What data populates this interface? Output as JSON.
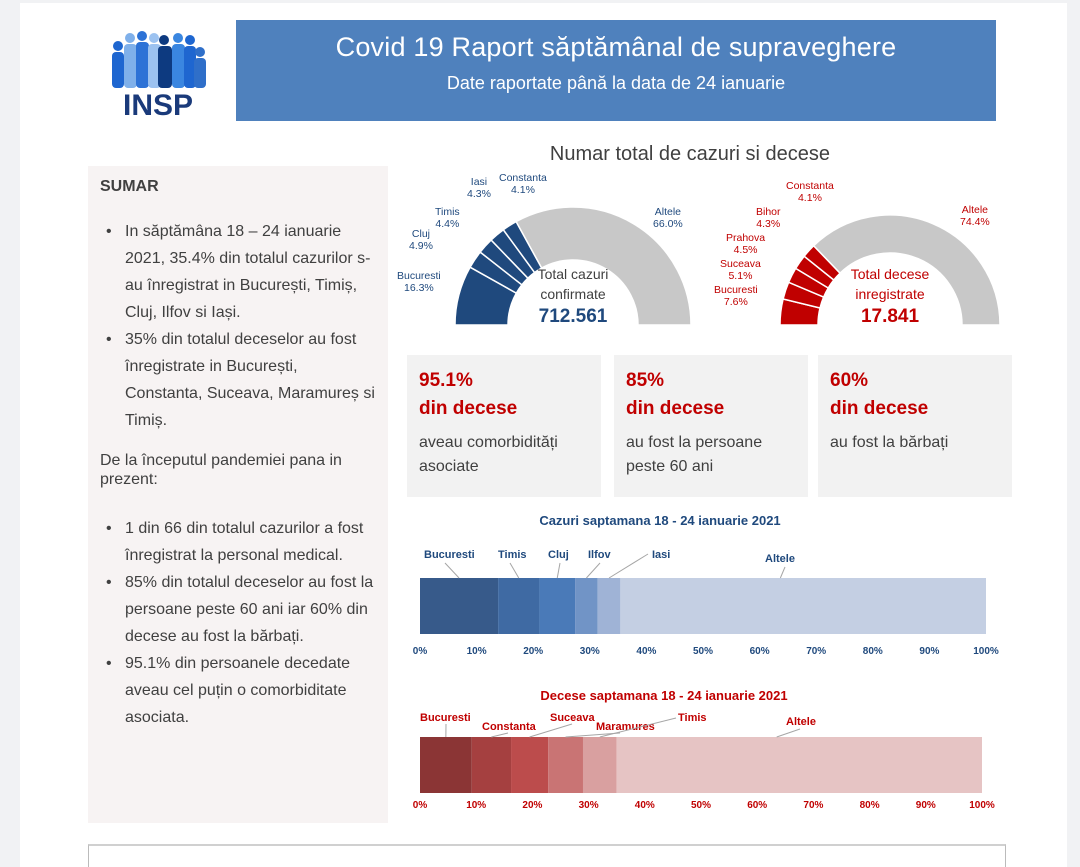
{
  "header": {
    "logo_text": "INSP",
    "title": "Covid 19 Raport săptămânal de supraveghere",
    "subtitle": "Date raportate până la data de 24 ianuarie"
  },
  "sumar": {
    "heading": "SUMAR",
    "week_bullets": [
      "In săptămâna 18  – 24 ianuarie 2021, 35.4% din totalul cazurilor s-au înregistrat in București, Timiș, Cluj, Ilfov si Iași.",
      "35% din totalul deceselor au fost înregistrate in București, Constanta, Suceava, Maramureș si Timiș."
    ],
    "since_start_heading": "De la începutul pandemiei pana in prezent:",
    "since_start_bullets": [
      "1 din 66 din totalul cazurilor a fost înregistrat la personal medical.",
      "85% din totalul deceselor au fost la persoane peste 60 ani iar 60% din decese au fost la bărbați.",
      "95.1% din persoanele decedate aveau cel puțin o comorbiditate asociata."
    ]
  },
  "section_title": "Numar total de cazuri si decese",
  "kpis": [
    {
      "value": "95.1%",
      "label": "din decese",
      "desc": "aveau comorbidități asociate"
    },
    {
      "value": "85%",
      "label": "din decese",
      "desc": "au fost la persoane peste 60 ani"
    },
    {
      "value": "60%",
      "label": "din decese",
      "desc": "au fost la bărbați"
    }
  ],
  "colors": {
    "banner": "#4f81bd",
    "cases_dark": "#1f497d",
    "deaths_red": "#c00000",
    "gauge_grey": "#c8c8c8",
    "kpi_red": "#c00000"
  },
  "chart_data": [
    {
      "type": "pie",
      "variant": "half-donut",
      "title": "Total cazuri confirmate",
      "center_line1": "Total cazuri",
      "center_line2": "confirmate",
      "total": "712.561",
      "series": [
        {
          "name": "Bucuresti",
          "value": 16.3,
          "label": "16.3%"
        },
        {
          "name": "Cluj",
          "value": 4.9,
          "label": "4.9%"
        },
        {
          "name": "Timis",
          "value": 4.4,
          "label": "4.4%"
        },
        {
          "name": "Iasi",
          "value": 4.3,
          "label": "4.3%"
        },
        {
          "name": "Constanta",
          "value": 4.1,
          "label": "4.1%"
        },
        {
          "name": "Altele",
          "value": 66.0,
          "label": "66.0%"
        }
      ]
    },
    {
      "type": "pie",
      "variant": "half-donut",
      "title": "Total decese inregistrate",
      "center_line1": "Total decese",
      "center_line2": "inregistrate",
      "total": "17.841",
      "series": [
        {
          "name": "Bucuresti",
          "value": 7.6,
          "label": "7.6%"
        },
        {
          "name": "Suceava",
          "value": 5.1,
          "label": "5.1%"
        },
        {
          "name": "Prahova",
          "value": 4.5,
          "label": "4.5%"
        },
        {
          "name": "Bihor",
          "value": 4.3,
          "label": "4.3%"
        },
        {
          "name": "Constanta",
          "value": 4.1,
          "label": "4.1%"
        },
        {
          "name": "Altele",
          "value": 74.4,
          "label": "74.4%"
        }
      ]
    },
    {
      "type": "bar",
      "variant": "stacked-100-horizontal",
      "title": "Cazuri saptamana 18 - 24 ianuarie 2021",
      "categories": [
        "Bucuresti",
        "Timis",
        "Cluj",
        "Ilfov",
        "Iasi",
        "Altele"
      ],
      "values": [
        13.8,
        7.3,
        6.3,
        4.0,
        4.0,
        64.6
      ],
      "colors": [
        "#375a8a",
        "#3f6aa3",
        "#4a7ab8",
        "#7194c6",
        "#9fb3d6",
        "#c4cfe3"
      ],
      "xticks": [
        "0%",
        "10%",
        "20%",
        "30%",
        "40%",
        "50%",
        "60%",
        "70%",
        "80%",
        "90%",
        "100%"
      ],
      "xlim": [
        0,
        100
      ],
      "label_color": "#1f497d"
    },
    {
      "type": "bar",
      "variant": "stacked-100-horizontal",
      "title": "Decese saptamana 18 - 24 ianuarie 2021",
      "categories": [
        "Bucuresti",
        "Constanta",
        "Suceava",
        "Maramures",
        "Timis",
        "Altele"
      ],
      "values": [
        9.2,
        7.0,
        6.6,
        6.2,
        6.0,
        65.0
      ],
      "colors": [
        "#8b3535",
        "#a54040",
        "#bc4c4c",
        "#c97474",
        "#d9a0a0",
        "#e6c4c4"
      ],
      "xticks": [
        "0%",
        "10%",
        "20%",
        "30%",
        "40%",
        "50%",
        "60%",
        "70%",
        "80%",
        "90%",
        "100%"
      ],
      "xlim": [
        0,
        100
      ],
      "label_color": "#c00000"
    }
  ]
}
